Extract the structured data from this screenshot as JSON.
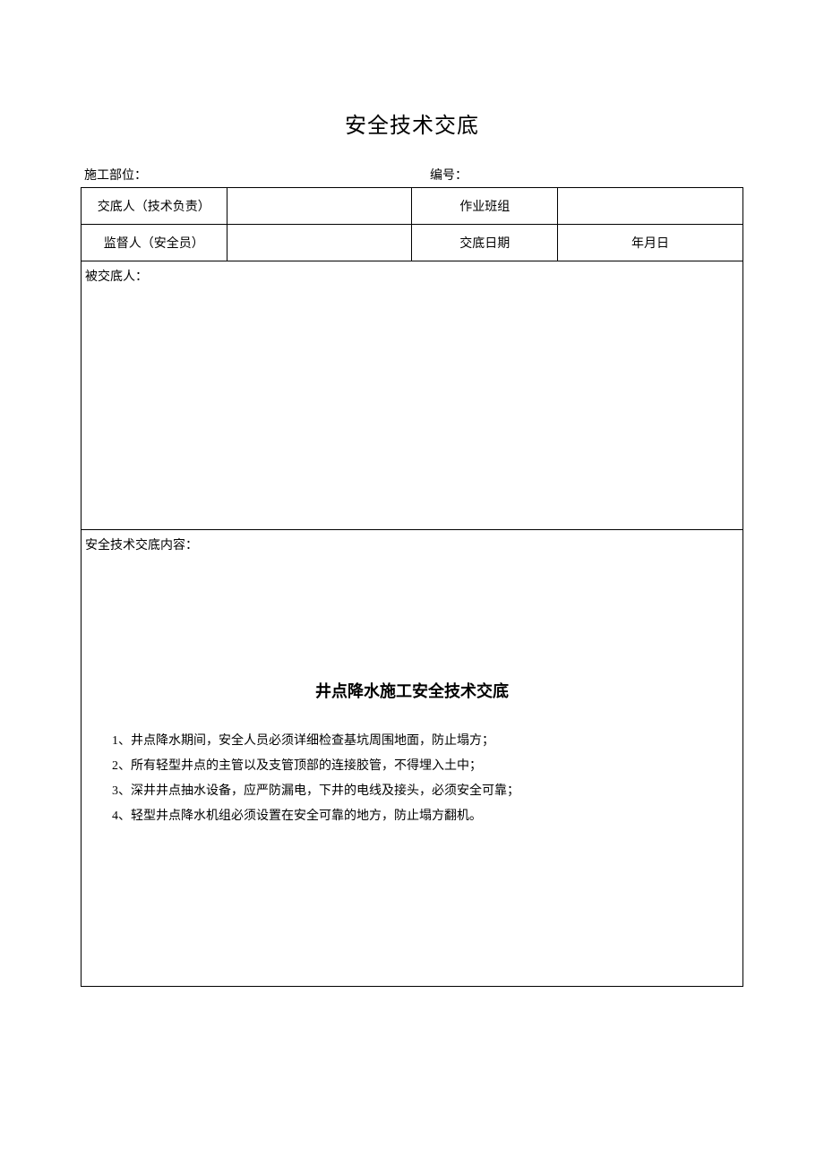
{
  "title": "安全技术交底",
  "header": {
    "construction_part_label": "施工部位：",
    "number_label": "编号："
  },
  "table": {
    "row1": {
      "c1": "交底人（技术负责）",
      "c2": "",
      "c3": "作业班组",
      "c4": ""
    },
    "row2": {
      "c1": "监督人（安全员）",
      "c2": "",
      "c3": "交底日期",
      "c4": "年月日"
    },
    "recipient_label": "被交底人：",
    "content_label": "安全技术交底内容：",
    "content": {
      "inner_title": "井点降水施工安全技术交底",
      "items": [
        "1、井点降水期间，安全人员必须详细检查基坑周围地面，防止塌方；",
        "2、所有轻型井点的主管以及支管顶部的连接胶管，不得埋入土中；",
        "3、深井井点抽水设备，应严防漏电，下井的电线及接头，必须安全可靠；",
        "4、轻型井点降水机组必须设置在安全可靠的地方，防止塌方翻机。"
      ]
    }
  },
  "styles": {
    "background_color": "#ffffff",
    "border_color": "#000000",
    "title_fontsize": 24,
    "body_fontsize": 14,
    "inner_title_fontsize": 18
  }
}
